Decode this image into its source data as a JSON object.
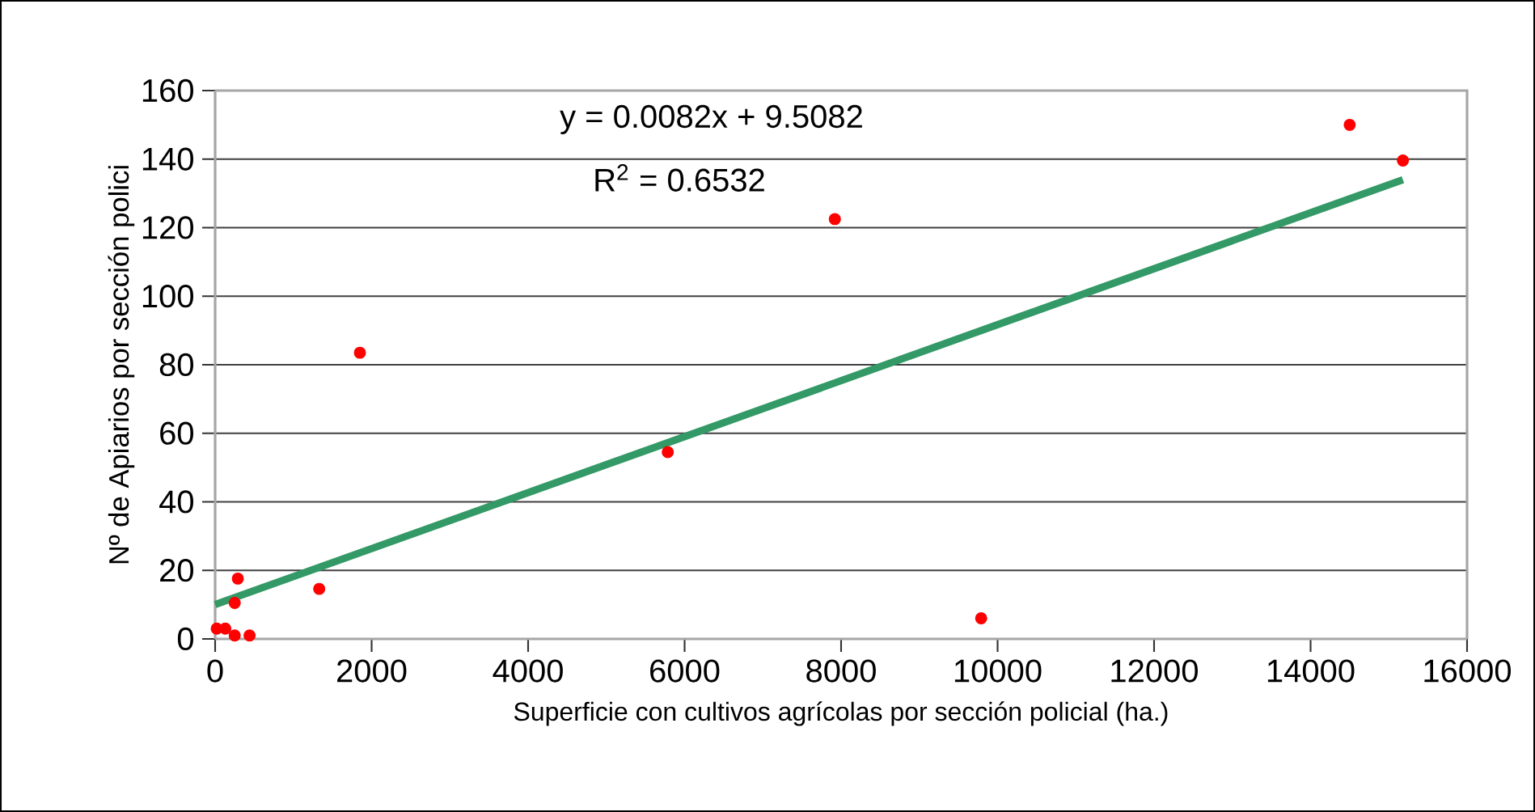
{
  "chart_data": {
    "type": "scatter",
    "xlabel": "Superficie con cultivos agrícolas por sección policial (ha.)",
    "ylabel": "Nº de Apiarios por sección polici",
    "annotations": [
      "y = 0.0082x + 9.5082",
      "R$^{2}$ = 0.6532"
    ],
    "series": [
      {
        "color": "#ff0000",
        "marker": "circle",
        "x": [
          20,
          130,
          250,
          440,
          290,
          250,
          1330,
          1850,
          5785,
          7920,
          9790,
          14500,
          15180
        ],
        "values": [
          3,
          3,
          1,
          1,
          17.6,
          10.5,
          14.6,
          83.5,
          54.5,
          122.5,
          6,
          150,
          139.6
        ]
      },
      {
        "type": "line",
        "color": "#339966",
        "marker": "none",
        "x": [
          0,
          15180
        ],
        "values": [
          10,
          134
        ]
      }
    ],
    "xlim": [
      0,
      16000
    ],
    "xticks": [
      0,
      2000,
      4000,
      6000,
      8000,
      10000,
      12000,
      14000,
      16000
    ],
    "ylim": [
      0,
      160
    ],
    "yticks": [
      0,
      20,
      40,
      60,
      80,
      100,
      120,
      140,
      160
    ],
    "grid": "y"
  }
}
